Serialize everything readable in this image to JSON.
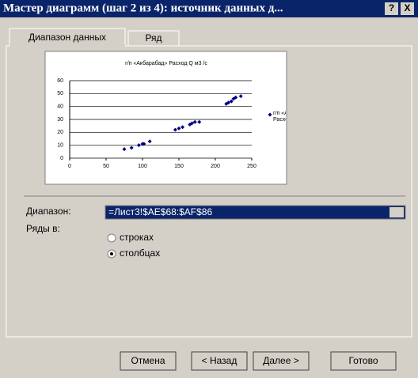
{
  "window": {
    "title": "Мастер диаграмм (шаг 2 из 4): источник данных д...",
    "help": "?",
    "close": "X"
  },
  "tabs": [
    "Диапазон данных",
    "Ряд"
  ],
  "chart_data": {
    "type": "scatter",
    "title": "г/п «Акбарабад» Расход Q м3 /с",
    "series": [
      {
        "name": "г/п «Акбарабад» Расход Q м3 /с",
        "color": "#000080",
        "x": [
          75,
          85,
          95,
          100,
          102,
          110,
          145,
          150,
          155,
          165,
          168,
          172,
          178,
          215,
          218,
          222,
          225,
          228,
          235
        ],
        "values": [
          7,
          8,
          10,
          11,
          11,
          13,
          22,
          23,
          24,
          26,
          27,
          28,
          28,
          42,
          43,
          44,
          46,
          47,
          48
        ]
      }
    ],
    "xlim": [
      0,
      250
    ],
    "xticks": [
      0,
      50,
      100,
      150,
      200,
      250
    ],
    "ylim": [
      0,
      60
    ],
    "yticks": [
      0,
      10,
      20,
      30,
      40,
      50,
      60
    ],
    "grid": true,
    "legend": "right"
  },
  "range": {
    "label": "Диапазон:",
    "value": "=Лист3!$AE$68:$AF$86"
  },
  "series_in": {
    "label": "Ряды в:",
    "options": [
      "строках",
      "столбцах"
    ]
  },
  "buttons": [
    "Отмена",
    "< Назад",
    "Далее >",
    "Готово"
  ]
}
